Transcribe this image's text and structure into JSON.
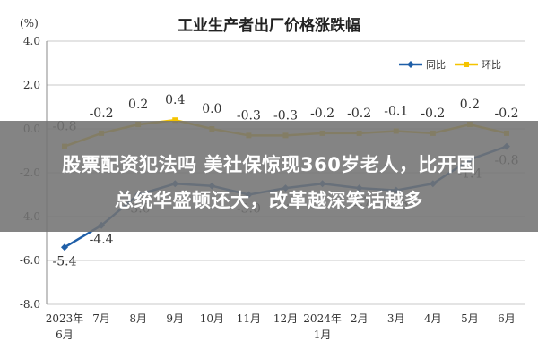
{
  "chart_data": {
    "type": "line",
    "title": "工业生产者出厂价格涨跌幅",
    "unit": "(%)",
    "categories": [
      [
        "2023年",
        "6月"
      ],
      [
        "7月"
      ],
      [
        "8月"
      ],
      [
        "9月"
      ],
      [
        "10月"
      ],
      [
        "11月"
      ],
      [
        "12月"
      ],
      [
        "2024年",
        "1月"
      ],
      [
        "2月"
      ],
      [
        "3月"
      ],
      [
        "4月"
      ],
      [
        "5月"
      ],
      [
        "6月"
      ]
    ],
    "ylim": [
      -8.0,
      4.0
    ],
    "yticks": [
      "4.0",
      "2.0",
      "0.0",
      "-2.0",
      "-4.0",
      "-6.0",
      "-8.0"
    ],
    "legend_position": "top-right",
    "series": [
      {
        "name": "同比",
        "color": "#1f5fa8",
        "values": [
          -5.4,
          -4.4,
          -3.0,
          -2.5,
          -2.6,
          -3.0,
          -2.7,
          -2.5,
          -2.7,
          -2.8,
          -2.5,
          -1.4,
          -0.8
        ],
        "labels": [
          "-5.4",
          "-4.4",
          "-3.0",
          "",
          "",
          "-3.0",
          "-2.7",
          "",
          "-2.7",
          "-2.8",
          "",
          "-1.4",
          "-0.8"
        ]
      },
      {
        "name": "环比",
        "color": "#f5c400",
        "values": [
          -0.8,
          -0.2,
          0.2,
          0.4,
          0.0,
          -0.3,
          -0.3,
          -0.2,
          -0.2,
          -0.1,
          -0.2,
          0.2,
          -0.2
        ],
        "labels": [
          "-0.8",
          "-0.2",
          "0.2",
          "0.4",
          "0.0",
          "-0.3",
          "-0.3",
          "-0.2",
          "-0.2",
          "-0.1",
          "-0.2",
          "0.2",
          "-0.2"
        ]
      }
    ]
  },
  "overlay": {
    "line1": "股票配资犯法吗 美社保惊现360岁老人，比开国",
    "line2": "总统华盛顿还大，改革越深笑话越多"
  }
}
